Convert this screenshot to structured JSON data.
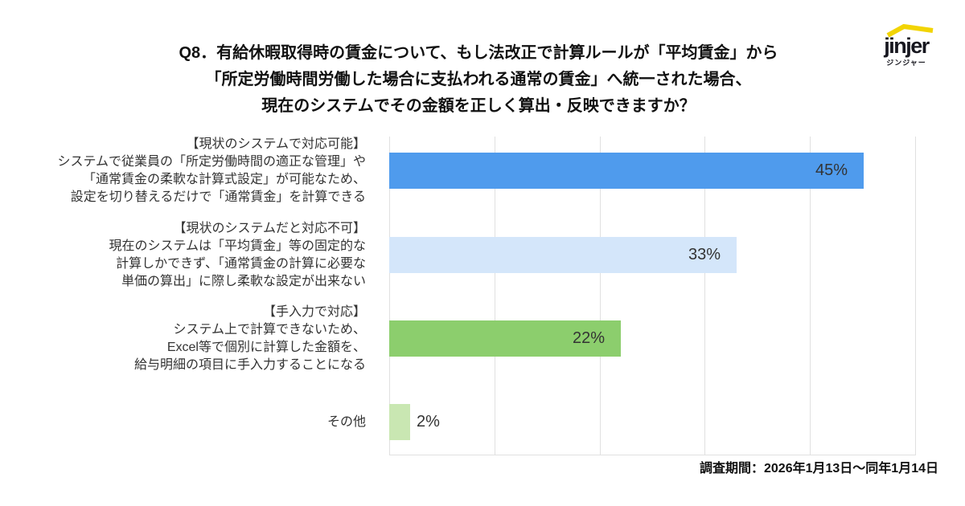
{
  "title": {
    "lines": [
      "Q8．有給休暇取得時の賃金について、もし法改正で計算ルールが「平均賃金」から",
      "「所定労働時間労働した場合に支払われる通常の賃金」へ統一された場合、",
      "現在のシステムでその金額を正しく算出・反映できますか？"
    ]
  },
  "logo": {
    "name": "jinjer",
    "subtext": "ジンジャー",
    "roof_color": "#f2d403",
    "text_color": "#17171f"
  },
  "footer": {
    "survey_period": "調査期間：2026年1月13日〜同年1月14日"
  },
  "chart_data": {
    "type": "bar",
    "orientation": "horizontal",
    "title": "Q8．有給休暇取得時の賃金について、もし法改正で計算ルールが「平均賃金」から「所定労働時間労働した場合に支払われる通常の賃金」へ統一された場合、現在のシステムでその金額を正しく算出・反映できますか？",
    "categories": [
      [
        "【現状のシステムで対応可能】",
        "システムで従業員の「所定労働時間の適正な管理」や",
        "「通常賃金の柔軟な計算式設定」が可能なため、",
        "設定を切り替えるだけで「通常賃金」を計算できる"
      ],
      [
        "【現状のシステムだと対応不可】",
        "現在のシステムは「平均賃金」等の固定的な",
        "計算しかできず、「通常賃金の計算に必要な",
        "単価の算出」に際し柔軟な設定が出来ない"
      ],
      [
        "【手入力で対応】",
        "システム上で計算できないため、",
        "Excel等で個別に計算した金額を、",
        "給与明細の項目に手入力することになる"
      ],
      [
        "その他"
      ]
    ],
    "values": [
      45,
      33,
      22,
      2
    ],
    "value_labels": [
      "45%",
      "33%",
      "22%",
      "2%"
    ],
    "bar_colors": [
      "#4f9bed",
      "#d4e6fa",
      "#8cce6d",
      "#c9e7b2"
    ],
    "value_label_color": "#333333",
    "xlim": [
      0,
      50
    ],
    "gridline_step": 10,
    "grid": true,
    "gridline_color": "#e0e0e0",
    "legend": false
  }
}
